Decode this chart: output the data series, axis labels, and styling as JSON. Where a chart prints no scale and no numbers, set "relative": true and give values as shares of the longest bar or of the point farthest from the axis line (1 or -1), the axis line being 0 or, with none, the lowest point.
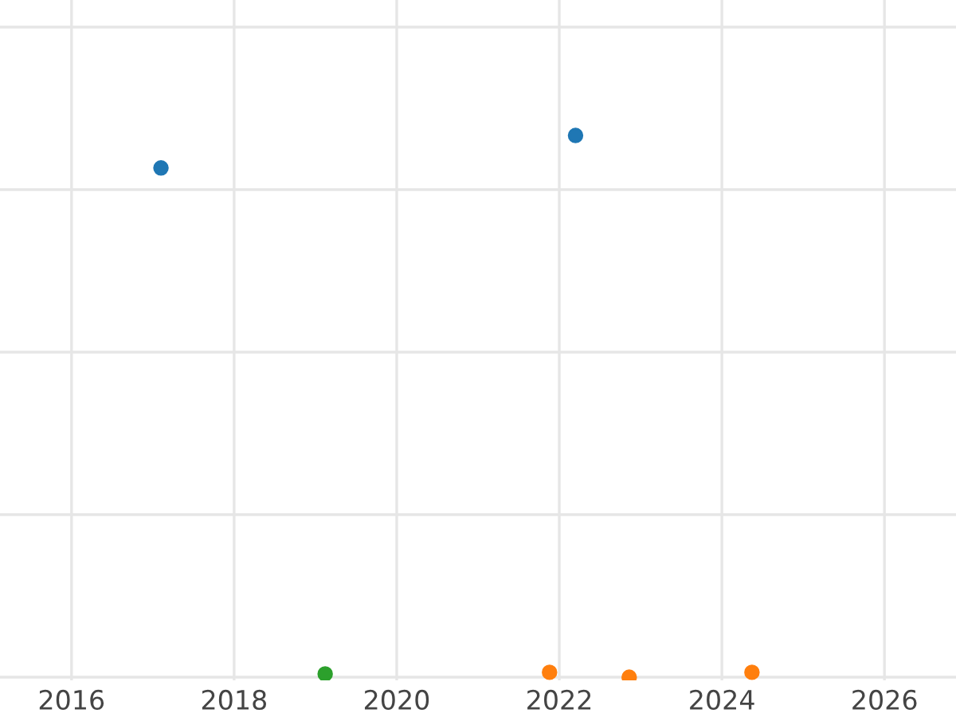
{
  "chart_data": {
    "type": "scatter",
    "relative": true,
    "series": [
      {
        "color": "#1f77b4",
        "x": [
          2017.1,
          2022.2
        ],
        "values": [
          0.94,
          1
        ]
      },
      {
        "color": "#2ca02c",
        "x": [
          2019.12
        ],
        "values": [
          0.006
        ]
      },
      {
        "color": "#ff7f0e",
        "x": [
          2021.88,
          2022.86,
          2024.37
        ],
        "values": [
          0.009,
          0,
          0.009
        ]
      }
    ],
    "xlim": [
      2015.12,
      2026.88
    ],
    "xticks": [
      2016,
      2018,
      2020,
      2022,
      2024,
      2026
    ],
    "grid": true,
    "marker": "circle",
    "legend": false
  }
}
